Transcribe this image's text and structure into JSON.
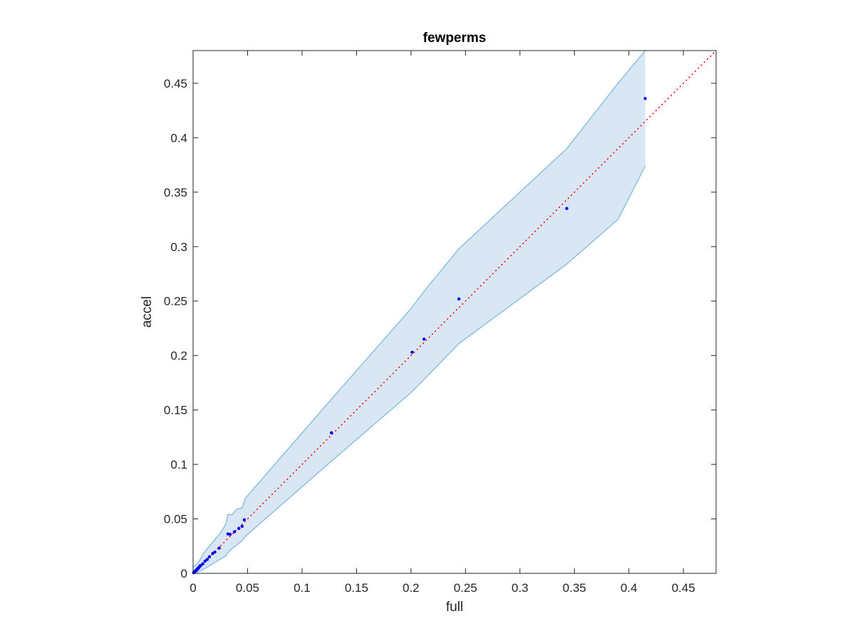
{
  "chart_data": {
    "type": "scatter",
    "title": "fewperms",
    "xlabel": "full",
    "ylabel": "accel",
    "xlim": [
      0,
      0.48
    ],
    "ylim": [
      0,
      0.48
    ],
    "xticks": [
      0,
      0.05,
      0.1,
      0.15,
      0.2,
      0.25,
      0.3,
      0.35,
      0.4,
      0.45
    ],
    "yticks": [
      0,
      0.05,
      0.1,
      0.15,
      0.2,
      0.25,
      0.3,
      0.35,
      0.4,
      0.45
    ],
    "xtick_labels": [
      "0",
      "0.05",
      "0.1",
      "0.15",
      "0.2",
      "0.25",
      "0.3",
      "0.35",
      "0.4",
      "0.45"
    ],
    "ytick_labels": [
      "0",
      "0.05",
      "0.1",
      "0.15",
      "0.2",
      "0.25",
      "0.3",
      "0.35",
      "0.4",
      "0.45"
    ],
    "grid": false,
    "box": true,
    "colors": {
      "points": "#0000ff",
      "reference_line": "#ff0000",
      "band_fill": "#d8e7f3",
      "band_edge": "#8dc0df",
      "axes": "#262626"
    },
    "points": {
      "x": [
        0.0005,
        0.001,
        0.0015,
        0.002,
        0.0025,
        0.003,
        0.0035,
        0.004,
        0.0045,
        0.005,
        0.0055,
        0.006,
        0.0065,
        0.007,
        0.009,
        0.011,
        0.013,
        0.015,
        0.018,
        0.02,
        0.024,
        0.032,
        0.034,
        0.038,
        0.042,
        0.045,
        0.047,
        0.127,
        0.201,
        0.212,
        0.244,
        0.343,
        0.415
      ],
      "y": [
        0.0006,
        0.0009,
        0.0017,
        0.0018,
        0.0026,
        0.0028,
        0.0035,
        0.0042,
        0.0044,
        0.0052,
        0.0055,
        0.0063,
        0.0068,
        0.0072,
        0.0088,
        0.0112,
        0.0128,
        0.0152,
        0.0182,
        0.0196,
        0.0232,
        0.0362,
        0.0358,
        0.0382,
        0.0412,
        0.0432,
        0.0492,
        0.129,
        0.203,
        0.215,
        0.252,
        0.335,
        0.436
      ]
    },
    "reference_line": {
      "style": "dotted",
      "x": [
        0,
        0.48
      ],
      "y": [
        0,
        0.48
      ]
    },
    "confidence_band": {
      "x": [
        0,
        0.003,
        0.006,
        0.01,
        0.015,
        0.02,
        0.025,
        0.03,
        0.032,
        0.036,
        0.04,
        0.045,
        0.048,
        0.127,
        0.2,
        0.212,
        0.244,
        0.343,
        0.39,
        0.415
      ],
      "upper": [
        0.006,
        0.008,
        0.012,
        0.019,
        0.025,
        0.031,
        0.037,
        0.045,
        0.054,
        0.054,
        0.059,
        0.06,
        0.069,
        0.16,
        0.243,
        0.259,
        0.298,
        0.39,
        0.45,
        0.48
      ],
      "lower": [
        0,
        0.001,
        0.002,
        0.004,
        0.007,
        0.01,
        0.013,
        0.016,
        0.019,
        0.023,
        0.026,
        0.03,
        0.034,
        0.103,
        0.166,
        0.178,
        0.211,
        0.284,
        0.325,
        0.374
      ]
    }
  }
}
